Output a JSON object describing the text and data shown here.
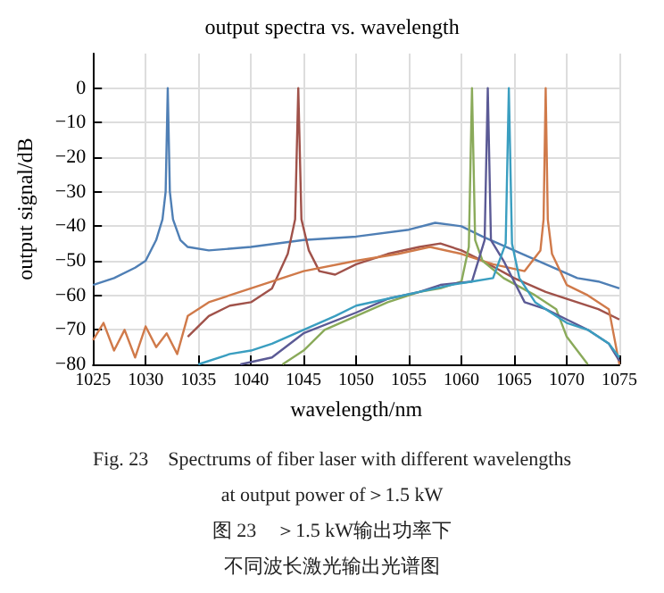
{
  "chart_data": {
    "type": "line",
    "title": "output spectra vs. wavelength",
    "xlabel": "wavelength/nm",
    "ylabel": "output signal/dB",
    "xlim": [
      1025,
      1075
    ],
    "xticks": [
      1025,
      1030,
      1035,
      1040,
      1045,
      1050,
      1055,
      1060,
      1065,
      1070,
      1075
    ],
    "ylim": [
      -80,
      10
    ],
    "yticks": [
      -80,
      -70,
      -60,
      -50,
      -40,
      -30,
      -20,
      -10,
      0
    ],
    "grid": true,
    "marker": "none",
    "line_style": "solid",
    "annotations": [
      "Fig. 23　Spectrums of fiber laser with different wavelengths",
      "at output power of＞1.5 kW",
      "图 23　＞1.5 kW输出功率下",
      "不同波长激光输出光谱图"
    ],
    "series": [
      {
        "color": "#4f7fb5",
        "x": [
          1025,
          1027,
          1029,
          1030,
          1031,
          1031.6,
          1031.9,
          1032.1,
          1032.3,
          1032.6,
          1033.3,
          1034,
          1036,
          1040,
          1045,
          1050,
          1055,
          1057.5,
          1060,
          1062,
          1065,
          1068,
          1071,
          1073,
          1075
        ],
        "values": [
          -57,
          -55,
          -52,
          -50,
          -44,
          -38,
          -30,
          0,
          -30,
          -38,
          -44,
          -46,
          -47,
          -46,
          -44,
          -43,
          -41,
          -39,
          -40,
          -43,
          -47,
          -51,
          -55,
          -56,
          -58
        ]
      },
      {
        "color": "#a0524a",
        "x": [
          1034,
          1036,
          1038,
          1040,
          1042,
          1043.5,
          1044.2,
          1044.5,
          1044.8,
          1045.5,
          1046.5,
          1048,
          1050,
          1053,
          1056,
          1058,
          1060,
          1062,
          1065,
          1068,
          1070,
          1073,
          1075
        ],
        "values": [
          -72,
          -66,
          -63,
          -62,
          -58,
          -48,
          -38,
          0,
          -38,
          -47,
          -53,
          -54,
          -51,
          -48,
          -46,
          -45,
          -47,
          -50,
          -55,
          -59,
          -61,
          -64,
          -67
        ]
      },
      {
        "color": "#d07a4a",
        "x": [
          1025,
          1026,
          1027,
          1028,
          1029,
          1030,
          1031,
          1032,
          1033,
          1034,
          1036,
          1040,
          1045,
          1050,
          1054,
          1057,
          1060,
          1063,
          1066,
          1067.5,
          1067.8,
          1068,
          1068.2,
          1068.6,
          1070,
          1072,
          1074,
          1075
        ],
        "values": [
          -73,
          -68,
          -76,
          -70,
          -78,
          -69,
          -75,
          -71,
          -77,
          -66,
          -62,
          -58,
          -53,
          -50,
          -48,
          -46,
          -48,
          -51,
          -53,
          -47,
          -38,
          0,
          -38,
          -48,
          -57,
          -60,
          -64,
          -80
        ]
      },
      {
        "color": "#8aaa5a",
        "x": [
          1043,
          1045,
          1047,
          1050,
          1053,
          1056,
          1058,
          1060,
          1060.7,
          1061,
          1061.3,
          1062,
          1064,
          1067,
          1069,
          1070,
          1071,
          1072
        ],
        "values": [
          -80,
          -76,
          -70,
          -66,
          -62,
          -59,
          -58,
          -56,
          -46,
          0,
          -44,
          -50,
          -55,
          -60,
          -64,
          -72,
          -76,
          -80
        ]
      },
      {
        "color": "#5b5a95",
        "x": [
          1039,
          1042,
          1045,
          1050,
          1053,
          1056,
          1058,
          1061,
          1062.2,
          1062.5,
          1062.8,
          1064,
          1066,
          1068,
          1070,
          1072,
          1074,
          1075
        ],
        "values": [
          -80,
          -78,
          -71,
          -65,
          -61,
          -59,
          -57,
          -56,
          -44,
          0,
          -44,
          -50,
          -62,
          -64,
          -67,
          -70,
          -74,
          -79
        ]
      },
      {
        "color": "#3a9ec0",
        "x": [
          1035,
          1038,
          1040,
          1042,
          1045,
          1048,
          1050,
          1053,
          1056,
          1059,
          1061,
          1063,
          1064.2,
          1064.5,
          1064.8,
          1065.5,
          1067,
          1070,
          1072,
          1074,
          1075
        ],
        "values": [
          -80,
          -77,
          -76,
          -74,
          -70,
          -66,
          -63,
          -61,
          -59,
          -57,
          -56,
          -55,
          -45,
          0,
          -45,
          -55,
          -62,
          -68,
          -70,
          -74,
          -78
        ]
      }
    ]
  }
}
